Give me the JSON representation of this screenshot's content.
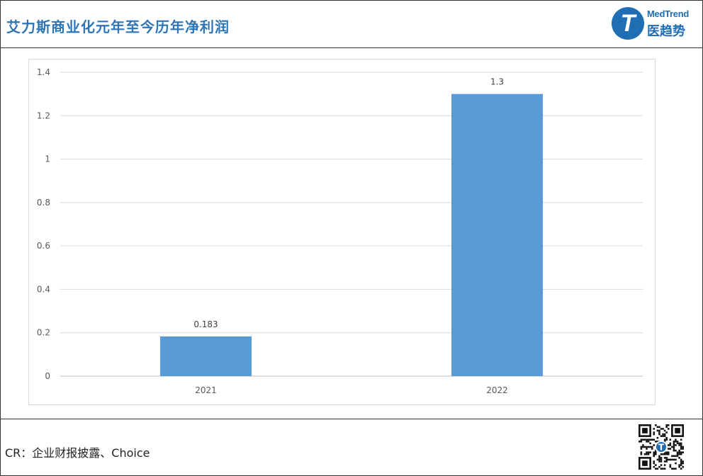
{
  "header": {
    "title": "艾力斯商业化元年至今历年净利润",
    "logo_en": "MedTrend",
    "logo_cn": "医趋势",
    "logo_letter": "T"
  },
  "footer": {
    "source": "CR：企业财报披露、Choice"
  },
  "colors": {
    "title": "#2E75B6",
    "bar": "#5B9BD5",
    "grid": "#D9D9D9",
    "logo": "#1F6DB3"
  },
  "chart_data": {
    "type": "bar",
    "categories": [
      "2021",
      "2022"
    ],
    "values": [
      0.183,
      1.3
    ],
    "data_labels": [
      "0.183",
      "1.3"
    ],
    "yticks": [
      "0",
      "0.2",
      "0.4",
      "0.6",
      "0.8",
      "1",
      "1.2",
      "1.4"
    ],
    "ylim": [
      0,
      1.4
    ],
    "title": "",
    "xlabel": "",
    "ylabel": "",
    "grid": true,
    "legend": "none"
  }
}
